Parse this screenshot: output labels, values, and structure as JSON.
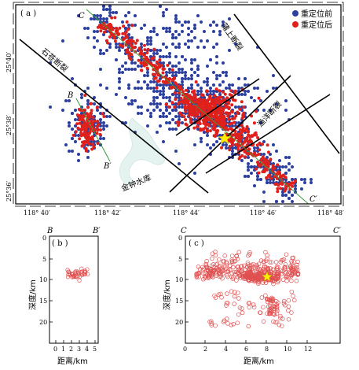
{
  "map": {
    "panel_label": "( a )",
    "legend": [
      {
        "label": "重定位前",
        "color": "#2b3f9e"
      },
      {
        "label": "重定位后",
        "color": "#e0201b"
      }
    ],
    "fault_labels": {
      "shicang": "石苍断裂",
      "pushang": "蒲上断裂",
      "yuyang": "渔洋断裂"
    },
    "reservoir_label": "金钟水库",
    "profile_labels": {
      "C": "C",
      "Cp": "C′",
      "B": "B",
      "Bp": "B′"
    },
    "lat_ticks": [
      "25°40′",
      "25°38′",
      "25°36′"
    ],
    "lon_ticks": [
      "118° 40′",
      "118° 42′",
      "118° 44′",
      "118° 46′",
      "118° 48′"
    ],
    "colors": {
      "fault": "#000000",
      "profile": "#3a9a3a",
      "star": "#ffee00",
      "water": "#e4f2f0"
    }
  },
  "panel_b": {
    "label": "( b )",
    "end_left": "B",
    "end_right": "B′",
    "ylabel": "深度/km",
    "xlabel": "距离/km",
    "xticks": [
      "0",
      "1",
      "2",
      "3",
      "4",
      "5"
    ],
    "yticks": [
      "0",
      "5",
      "10",
      "15",
      "20"
    ]
  },
  "panel_c": {
    "label": "( c )",
    "end_left": "C",
    "end_right": "C′",
    "ylabel": "深度/km",
    "xlabel": "距离/km",
    "xticks": [
      "0",
      "2",
      "4",
      "6",
      "8",
      "10",
      "12"
    ],
    "yticks": [
      "0",
      "5",
      "10",
      "15",
      "20"
    ]
  }
}
